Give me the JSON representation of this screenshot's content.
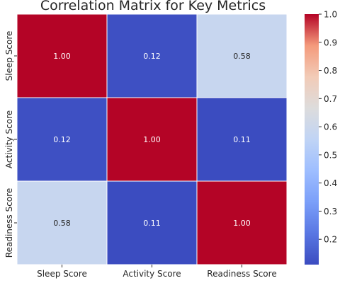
{
  "chart_data": {
    "type": "heatmap",
    "title": "Correlation Matrix for Key Metrics",
    "row_labels": [
      "Sleep Score",
      "Activity Score",
      "Readiness Score"
    ],
    "col_labels": [
      "Sleep Score",
      "Activity Score",
      "Readiness Score"
    ],
    "values": [
      [
        1.0,
        0.12,
        0.58
      ],
      [
        0.12,
        1.0,
        0.11
      ],
      [
        0.58,
        0.11,
        1.0
      ]
    ],
    "cell_text": [
      [
        "1.00",
        "0.12",
        "0.58"
      ],
      [
        "0.12",
        "1.00",
        "0.11"
      ],
      [
        "0.58",
        "0.11",
        "1.00"
      ]
    ],
    "colormap": "coolwarm",
    "colorbar": {
      "range": [
        0.11,
        1.0
      ],
      "ticks": [
        0.2,
        0.3,
        0.4,
        0.5,
        0.6,
        0.7,
        0.8,
        0.9,
        1.0
      ],
      "tick_labels": [
        "0.2",
        "0.3",
        "0.4",
        "0.5",
        "0.6",
        "0.7",
        "0.8",
        "0.9",
        "1.0"
      ]
    },
    "grid": false,
    "legend": "colorbar-right"
  }
}
